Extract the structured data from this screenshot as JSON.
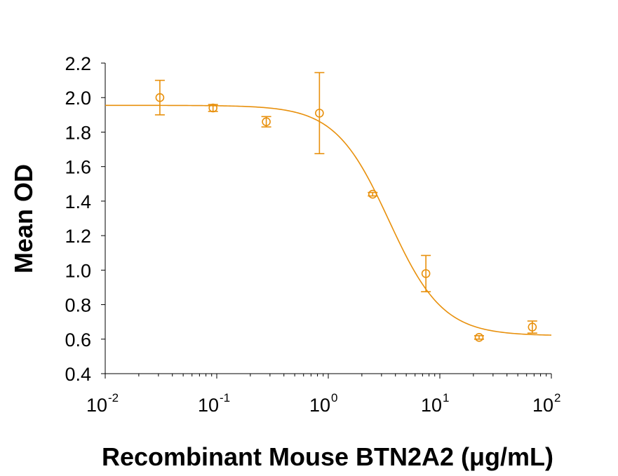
{
  "chart_data": {
    "type": "scatter",
    "title": "",
    "xlabel": "Recombinant Mouse BTN2A2 (μg/mL)",
    "ylabel": "Mean OD",
    "x_scale": "log",
    "xlim": [
      0.01,
      100
    ],
    "ylim": [
      0.4,
      2.2
    ],
    "x_ticks": [
      {
        "base": "10",
        "exp": "-2"
      },
      {
        "base": "10",
        "exp": "-1"
      },
      {
        "base": "10",
        "exp": "0"
      },
      {
        "base": "10",
        "exp": "1"
      },
      {
        "base": "10",
        "exp": "2"
      }
    ],
    "y_ticks": [
      "0.4",
      "0.6",
      "0.8",
      "1.0",
      "1.2",
      "1.4",
      "1.6",
      "1.8",
      "2.0",
      "2.2"
    ],
    "grid": false,
    "color": "#E8900C",
    "points": [
      {
        "x": 0.0309,
        "y": 2.0,
        "err": 0.1
      },
      {
        "x": 0.0926,
        "y": 1.94,
        "err": 0.02
      },
      {
        "x": 0.278,
        "y": 1.86,
        "err": 0.03
      },
      {
        "x": 0.833,
        "y": 1.91,
        "err": 0.235
      },
      {
        "x": 2.5,
        "y": 1.44,
        "err": 0.01
      },
      {
        "x": 7.5,
        "y": 0.98,
        "err": 0.105
      },
      {
        "x": 22.5,
        "y": 0.61,
        "err": 0.01
      },
      {
        "x": 67.5,
        "y": 0.67,
        "err": 0.035
      }
    ],
    "fit": {
      "model": "4PL",
      "top": 1.955,
      "bottom": 0.62,
      "ec50": 3.5,
      "hill": 1.8
    }
  }
}
